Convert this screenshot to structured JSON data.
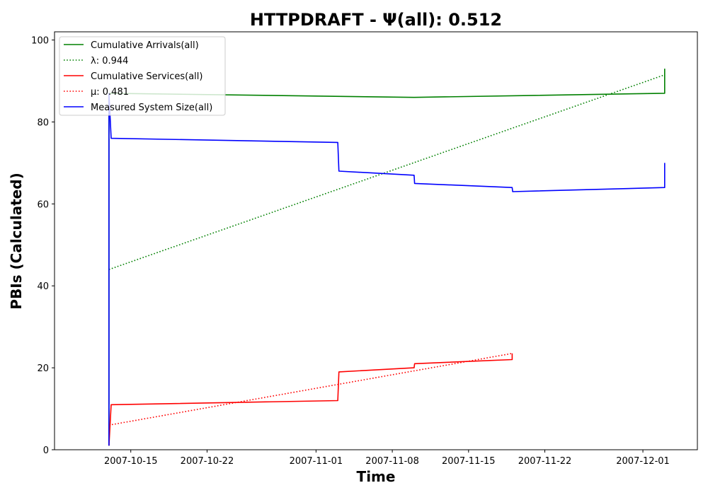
{
  "chart_data": {
    "type": "line",
    "title": "HTTPDRAFT -  Ψ(all): 0.512",
    "xlabel": "Time",
    "ylabel": "PBIs (Calculated)",
    "x_axis_type": "date",
    "xlim": [
      "2007-10-08",
      "2007-12-06"
    ],
    "ylim": [
      0,
      102
    ],
    "xticks": [
      "2007-10-15",
      "2007-10-22",
      "2007-11-01",
      "2007-11-08",
      "2007-11-15",
      "2007-11-22",
      "2007-12-01"
    ],
    "yticks": [
      0,
      20,
      40,
      60,
      80,
      100
    ],
    "grid": false,
    "legend_position": "top-left",
    "series": [
      {
        "name": "Cumulative Arrivals(all)",
        "color": "#008000",
        "style": "solid",
        "points": [
          [
            "2007-10-13",
            1
          ],
          [
            "2007-10-13",
            87
          ],
          [
            "2007-11-10",
            86
          ],
          [
            "2007-12-03",
            87
          ],
          [
            "2007-12-03",
            93
          ]
        ]
      },
      {
        "name": "λ: 0.944",
        "color": "#008000",
        "style": "dotted",
        "points": [
          [
            "2007-10-13",
            44
          ],
          [
            "2007-12-03",
            91.5
          ]
        ]
      },
      {
        "name": "Cumulative Services(all)",
        "color": "#ff0000",
        "style": "solid",
        "points": [
          [
            "2007-10-13",
            1
          ],
          [
            "2007-10-13.2",
            11
          ],
          [
            "2007-11-03",
            12
          ],
          [
            "2007-11-03.1",
            19
          ],
          [
            "2007-11-10",
            20
          ],
          [
            "2007-11-10.05",
            21
          ],
          [
            "2007-11-19",
            22
          ],
          [
            "2007-11-19",
            23.5
          ]
        ]
      },
      {
        "name": "μ: 0.481",
        "color": "#ff0000",
        "style": "dotted",
        "points": [
          [
            "2007-10-13",
            6
          ],
          [
            "2007-11-19",
            23.5
          ]
        ]
      },
      {
        "name": "Measured System Size(all)",
        "color": "#0000ff",
        "style": "solid",
        "points": [
          [
            "2007-10-13",
            1
          ],
          [
            "2007-10-13",
            87
          ],
          [
            "2007-10-13.2",
            76
          ],
          [
            "2007-11-03",
            75
          ],
          [
            "2007-11-03.1",
            68
          ],
          [
            "2007-11-10",
            67
          ],
          [
            "2007-11-10.05",
            65
          ],
          [
            "2007-11-19",
            64
          ],
          [
            "2007-11-19.05",
            63
          ],
          [
            "2007-12-03",
            64
          ],
          [
            "2007-12-03",
            70
          ]
        ]
      }
    ]
  }
}
